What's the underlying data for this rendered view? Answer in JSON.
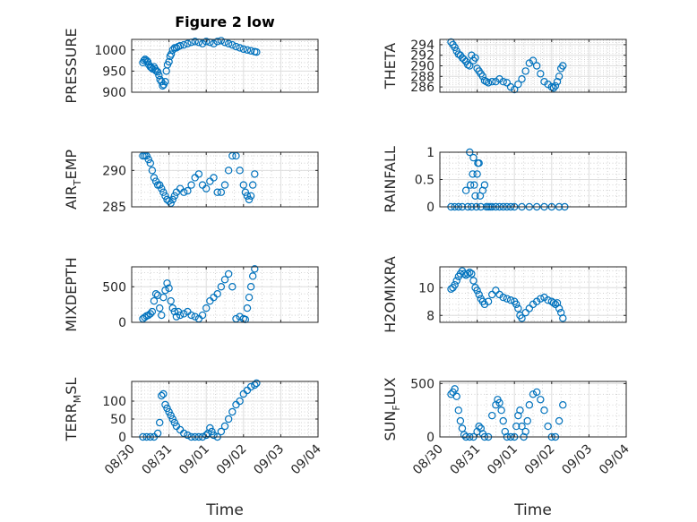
{
  "figure_title": "Figure 2 low",
  "x_axis": {
    "label": "Time",
    "tick_labels": [
      "08/30",
      "08/31",
      "09/01",
      "09/02",
      "09/03",
      "09/04"
    ]
  },
  "colors": {
    "marker": "#0072bd",
    "grid": "#dedede",
    "axes": "#262626"
  },
  "chart_data": [
    {
      "type": "scatter",
      "ylabel": "PRESSURE",
      "ylabel_sub": "",
      "ylabel_tail": "",
      "ylim": [
        900,
        1025
      ],
      "yticks": [
        900,
        950,
        1000
      ],
      "x": [
        0.3,
        0.33,
        0.36,
        0.4,
        0.43,
        0.46,
        0.5,
        0.53,
        0.56,
        0.6,
        0.63,
        0.66,
        0.7,
        0.73,
        0.76,
        0.8,
        0.83,
        0.86,
        0.9,
        0.93,
        0.96,
        1.0,
        1.03,
        1.06,
        1.1,
        1.15,
        1.2,
        1.25,
        1.3,
        1.4,
        1.5,
        1.6,
        1.7,
        1.8,
        1.9,
        2.0,
        2.1,
        2.2,
        2.3,
        2.4,
        2.5,
        2.6,
        2.7,
        2.8,
        2.9,
        3.0,
        3.1,
        3.2,
        3.3,
        3.35
      ],
      "y": [
        970,
        975,
        978,
        975,
        972,
        965,
        960,
        958,
        955,
        960,
        955,
        950,
        948,
        940,
        930,
        925,
        915,
        918,
        925,
        950,
        965,
        972,
        985,
        990,
        1000,
        1005,
        1005,
        1008,
        1010,
        1012,
        1015,
        1018,
        1020,
        1018,
        1015,
        1020,
        1018,
        1015,
        1020,
        1022,
        1018,
        1015,
        1012,
        1008,
        1005,
        1002,
        1000,
        998,
        996,
        995
      ]
    },
    {
      "type": "scatter",
      "ylabel": "THETA",
      "ylabel_sub": "",
      "ylabel_tail": "",
      "ylim": [
        285,
        295
      ],
      "yticks": [
        286,
        288,
        290,
        292,
        294
      ],
      "x": [
        0.3,
        0.35,
        0.4,
        0.45,
        0.5,
        0.55,
        0.6,
        0.65,
        0.7,
        0.75,
        0.8,
        0.85,
        0.9,
        0.95,
        1.0,
        1.05,
        1.1,
        1.15,
        1.2,
        1.25,
        1.3,
        1.4,
        1.5,
        1.6,
        1.7,
        1.8,
        1.9,
        2.0,
        2.1,
        2.2,
        2.3,
        2.4,
        2.5,
        2.6,
        2.7,
        2.8,
        2.9,
        3.0,
        3.05,
        3.1,
        3.15,
        3.2,
        3.25,
        3.3
      ],
      "y": [
        294.5,
        294,
        293.5,
        292.8,
        292.2,
        292,
        291.5,
        291.2,
        290.8,
        290.2,
        290,
        292,
        291,
        291.5,
        289.5,
        289,
        288.5,
        288,
        287.2,
        287,
        286.8,
        287,
        287,
        287.5,
        287,
        286.8,
        286,
        285.5,
        286.5,
        287.5,
        289,
        290.5,
        291,
        290,
        288.5,
        287,
        286.5,
        286,
        285.8,
        286.2,
        287,
        288,
        289.5,
        290
      ]
    },
    {
      "type": "scatter",
      "ylabel": "AIR",
      "ylabel_sub": "T",
      "ylabel_tail": "EMP",
      "ylim": [
        285,
        292.5
      ],
      "yticks": [
        285,
        290
      ],
      "x": [
        0.3,
        0.35,
        0.4,
        0.45,
        0.5,
        0.55,
        0.6,
        0.65,
        0.7,
        0.75,
        0.8,
        0.85,
        0.9,
        0.95,
        1.0,
        1.05,
        1.1,
        1.15,
        1.2,
        1.3,
        1.4,
        1.5,
        1.6,
        1.7,
        1.8,
        1.9,
        2.0,
        2.1,
        2.2,
        2.3,
        2.4,
        2.5,
        2.6,
        2.7,
        2.8,
        2.9,
        3.0,
        3.05,
        3.1,
        3.15,
        3.2,
        3.25,
        3.3
      ],
      "y": [
        292,
        292,
        292,
        291.5,
        291,
        290,
        289,
        288.5,
        288,
        288,
        287.5,
        287,
        286.5,
        286,
        285.8,
        285.5,
        286,
        286.5,
        287,
        287.5,
        287,
        287.2,
        288,
        289,
        289.5,
        288,
        287.5,
        288.5,
        289,
        287,
        287,
        288,
        290,
        292,
        292,
        290,
        288,
        287,
        286.5,
        286,
        286.5,
        288,
        289.5
      ]
    },
    {
      "type": "scatter",
      "ylabel": "RAINFALL",
      "ylabel_sub": "",
      "ylabel_tail": "",
      "ylim": [
        0,
        1
      ],
      "yticks": [
        0,
        0.5,
        1
      ],
      "x": [
        0.3,
        0.4,
        0.5,
        0.6,
        0.7,
        0.75,
        0.8,
        0.82,
        0.85,
        0.88,
        0.9,
        0.92,
        0.95,
        0.98,
        1.0,
        1.02,
        1.05,
        1.08,
        1.1,
        1.15,
        1.2,
        1.25,
        1.3,
        1.35,
        1.4,
        1.5,
        1.6,
        1.7,
        1.8,
        1.9,
        2.0,
        2.2,
        2.4,
        2.6,
        2.8,
        3.0,
        3.2,
        3.35
      ],
      "y": [
        0,
        0,
        0,
        0,
        0.3,
        0,
        1.0,
        0.4,
        0,
        0.6,
        0.9,
        0.4,
        0.2,
        0,
        0.6,
        0.8,
        0.8,
        0.2,
        0,
        0.3,
        0.4,
        0,
        0,
        0,
        0,
        0,
        0,
        0,
        0,
        0,
        0,
        0,
        0,
        0,
        0,
        0,
        0,
        0
      ]
    },
    {
      "type": "scatter",
      "ylabel": "MIXDEPTH",
      "ylabel_sub": "",
      "ylabel_tail": "",
      "ylim": [
        0,
        780
      ],
      "yticks": [
        0,
        500
      ],
      "x": [
        0.3,
        0.35,
        0.4,
        0.45,
        0.5,
        0.55,
        0.6,
        0.65,
        0.7,
        0.75,
        0.8,
        0.85,
        0.9,
        0.95,
        1.0,
        1.05,
        1.1,
        1.15,
        1.2,
        1.25,
        1.3,
        1.4,
        1.5,
        1.6,
        1.7,
        1.8,
        1.9,
        2.0,
        2.1,
        2.2,
        2.3,
        2.4,
        2.5,
        2.6,
        2.7,
        2.8,
        2.9,
        3.0,
        3.05,
        3.1,
        3.15,
        3.2,
        3.25,
        3.3
      ],
      "y": [
        50,
        70,
        90,
        100,
        120,
        150,
        300,
        400,
        380,
        200,
        100,
        350,
        450,
        550,
        480,
        300,
        200,
        150,
        80,
        150,
        100,
        120,
        150,
        100,
        80,
        50,
        100,
        200,
        300,
        350,
        400,
        500,
        600,
        680,
        500,
        50,
        80,
        50,
        40,
        200,
        350,
        500,
        650,
        750
      ]
    },
    {
      "type": "scatter",
      "ylabel": "H2OMIXRA",
      "ylabel_sub": "",
      "ylabel_tail": "",
      "ylim": [
        7.5,
        11.5
      ],
      "yticks": [
        8,
        10
      ],
      "x": [
        0.3,
        0.35,
        0.4,
        0.45,
        0.5,
        0.55,
        0.6,
        0.65,
        0.7,
        0.75,
        0.8,
        0.85,
        0.9,
        0.95,
        1.0,
        1.05,
        1.1,
        1.15,
        1.2,
        1.3,
        1.4,
        1.5,
        1.6,
        1.7,
        1.8,
        1.9,
        2.0,
        2.05,
        2.1,
        2.15,
        2.2,
        2.3,
        2.4,
        2.5,
        2.6,
        2.7,
        2.8,
        2.9,
        3.0,
        3.05,
        3.1,
        3.15,
        3.2,
        3.25,
        3.3
      ],
      "y": [
        9.9,
        10,
        10.2,
        10.5,
        10.8,
        11,
        11.2,
        11,
        10.9,
        11,
        11.1,
        11,
        10.5,
        10,
        9.8,
        9.5,
        9.2,
        9,
        8.8,
        9,
        9.5,
        9.8,
        9.5,
        9.3,
        9.2,
        9.1,
        9,
        8.8,
        8.5,
        8,
        7.8,
        8.2,
        8.5,
        8.8,
        9,
        9.2,
        9.3,
        9.1,
        9,
        8.9,
        8.8,
        8.9,
        8.5,
        8.2,
        7.8
      ]
    },
    {
      "type": "scatter",
      "ylabel": "TERR",
      "ylabel_sub": "M",
      "ylabel_tail": "SL",
      "ylim": [
        0,
        155
      ],
      "yticks": [
        0,
        50,
        100
      ],
      "x": [
        0.3,
        0.4,
        0.5,
        0.6,
        0.7,
        0.75,
        0.8,
        0.85,
        0.9,
        0.95,
        1.0,
        1.05,
        1.1,
        1.15,
        1.2,
        1.3,
        1.4,
        1.5,
        1.6,
        1.7,
        1.8,
        1.9,
        2.0,
        2.05,
        2.1,
        2.15,
        2.2,
        2.3,
        2.4,
        2.5,
        2.6,
        2.7,
        2.8,
        2.9,
        3.0,
        3.1,
        3.2,
        3.3,
        3.35
      ],
      "y": [
        0,
        0,
        0,
        0,
        10,
        40,
        115,
        120,
        90,
        80,
        70,
        60,
        50,
        40,
        30,
        20,
        10,
        5,
        0,
        0,
        0,
        0,
        5,
        10,
        25,
        15,
        5,
        0,
        15,
        30,
        50,
        70,
        90,
        100,
        120,
        130,
        140,
        145,
        150
      ]
    },
    {
      "type": "scatter",
      "ylabel": "SUN",
      "ylabel_sub": "F",
      "ylabel_tail": "LUX",
      "ylim": [
        0,
        520
      ],
      "yticks": [
        0,
        500
      ],
      "x": [
        0.3,
        0.35,
        0.4,
        0.45,
        0.5,
        0.55,
        0.6,
        0.65,
        0.7,
        0.8,
        0.9,
        1.0,
        1.05,
        1.1,
        1.15,
        1.2,
        1.3,
        1.4,
        1.5,
        1.55,
        1.6,
        1.65,
        1.7,
        1.75,
        1.8,
        1.9,
        2.0,
        2.05,
        2.1,
        2.15,
        2.2,
        2.25,
        2.3,
        2.35,
        2.4,
        2.5,
        2.6,
        2.7,
        2.8,
        2.9,
        3.0,
        3.1,
        3.2,
        3.3
      ],
      "y": [
        400,
        420,
        450,
        380,
        250,
        150,
        80,
        20,
        0,
        0,
        0,
        50,
        100,
        80,
        30,
        0,
        0,
        200,
        300,
        350,
        320,
        250,
        150,
        50,
        0,
        0,
        0,
        100,
        200,
        250,
        100,
        0,
        50,
        150,
        300,
        400,
        420,
        350,
        250,
        100,
        0,
        0,
        150,
        300
      ]
    }
  ]
}
